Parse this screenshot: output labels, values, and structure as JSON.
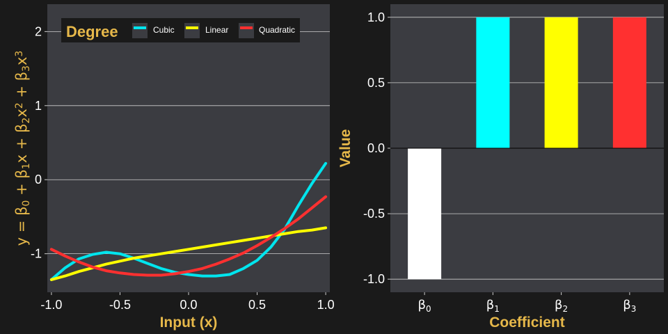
{
  "colors": {
    "background": "#1a1a1a",
    "panel": "#3b3c41",
    "grid": "#cfcfcf",
    "accent": "#e6b84a",
    "text": "#ffffff"
  },
  "chart_data": [
    {
      "type": "line",
      "xlabel": "Input (x)",
      "ylabel_parts": [
        {
          "t": "y = β"
        },
        {
          "t": "0",
          "sub": true
        },
        {
          "t": " + β"
        },
        {
          "t": "1",
          "sub": true
        },
        {
          "t": "x + β"
        },
        {
          "t": "2",
          "sub": true
        },
        {
          "t": "x"
        },
        {
          "t": "2",
          "sup": true
        },
        {
          "t": " + β"
        },
        {
          "t": "3",
          "sub": true
        },
        {
          "t": "x"
        },
        {
          "t": "3",
          "sup": true
        }
      ],
      "xlim": [
        -1.03,
        1.03
      ],
      "ylim": [
        -1.52,
        2.37
      ],
      "x_ticks": [
        "-1.0",
        "-0.5",
        "0.0",
        "0.5",
        "1.0"
      ],
      "x_tick_values": [
        -1.0,
        -0.5,
        0.0,
        0.5,
        1.0
      ],
      "y_ticks": [
        "-1",
        "0",
        "1",
        "2"
      ],
      "y_tick_values": [
        -1,
        0,
        1,
        2
      ],
      "grid": "horizontal",
      "legend": {
        "title": "Degree",
        "placement": "top",
        "entries": [
          "Cubic",
          "Linear",
          "Quadratic"
        ]
      },
      "x": [
        -1.0,
        -0.9,
        -0.8,
        -0.7,
        -0.6,
        -0.5,
        -0.4,
        -0.3,
        -0.2,
        -0.1,
        0.0,
        0.1,
        0.2,
        0.3,
        0.4,
        0.5,
        0.6,
        0.7,
        0.8,
        0.9,
        1.0
      ],
      "series": [
        {
          "name": "Cubic",
          "color": "#00e5ee",
          "values": [
            -1.35,
            -1.19,
            -1.07,
            -1.01,
            -0.98,
            -1.0,
            -1.06,
            -1.13,
            -1.2,
            -1.25,
            -1.28,
            -1.3,
            -1.3,
            -1.28,
            -1.2,
            -1.09,
            -0.91,
            -0.67,
            -0.35,
            -0.05,
            0.22
          ]
        },
        {
          "name": "Linear",
          "color": "#ffff00",
          "values": [
            -1.35,
            -1.3,
            -1.24,
            -1.19,
            -1.14,
            -1.1,
            -1.06,
            -1.03,
            -1.0,
            -0.97,
            -0.94,
            -0.91,
            -0.88,
            -0.85,
            -0.82,
            -0.79,
            -0.76,
            -0.73,
            -0.7,
            -0.68,
            -0.65
          ]
        },
        {
          "name": "Quadratic",
          "color": "#ff3030",
          "values": [
            -0.94,
            -1.03,
            -1.11,
            -1.18,
            -1.23,
            -1.26,
            -1.28,
            -1.29,
            -1.29,
            -1.27,
            -1.24,
            -1.2,
            -1.14,
            -1.07,
            -0.99,
            -0.89,
            -0.78,
            -0.66,
            -0.53,
            -0.38,
            -0.23
          ]
        }
      ]
    },
    {
      "type": "bar",
      "xlabel": "Coefficient",
      "ylabel": "Value",
      "categories": [
        {
          "base": "β",
          "sub": "0"
        },
        {
          "base": "β",
          "sub": "1"
        },
        {
          "base": "β",
          "sub": "2"
        },
        {
          "base": "β",
          "sub": "3"
        }
      ],
      "values": [
        -1.0,
        1.0,
        1.0,
        1.0
      ],
      "colors": [
        "#ffffff",
        "#00ffff",
        "#ffff00",
        "#ff3030"
      ],
      "ylim": [
        -1.1,
        1.1
      ],
      "y_ticks": [
        "-1.0",
        "-0.5",
        "0.0",
        "0.5",
        "1.0"
      ],
      "y_tick_values": [
        -1.0,
        -0.5,
        0.0,
        0.5,
        1.0
      ],
      "grid": "horizontal",
      "zero_line": true
    }
  ]
}
